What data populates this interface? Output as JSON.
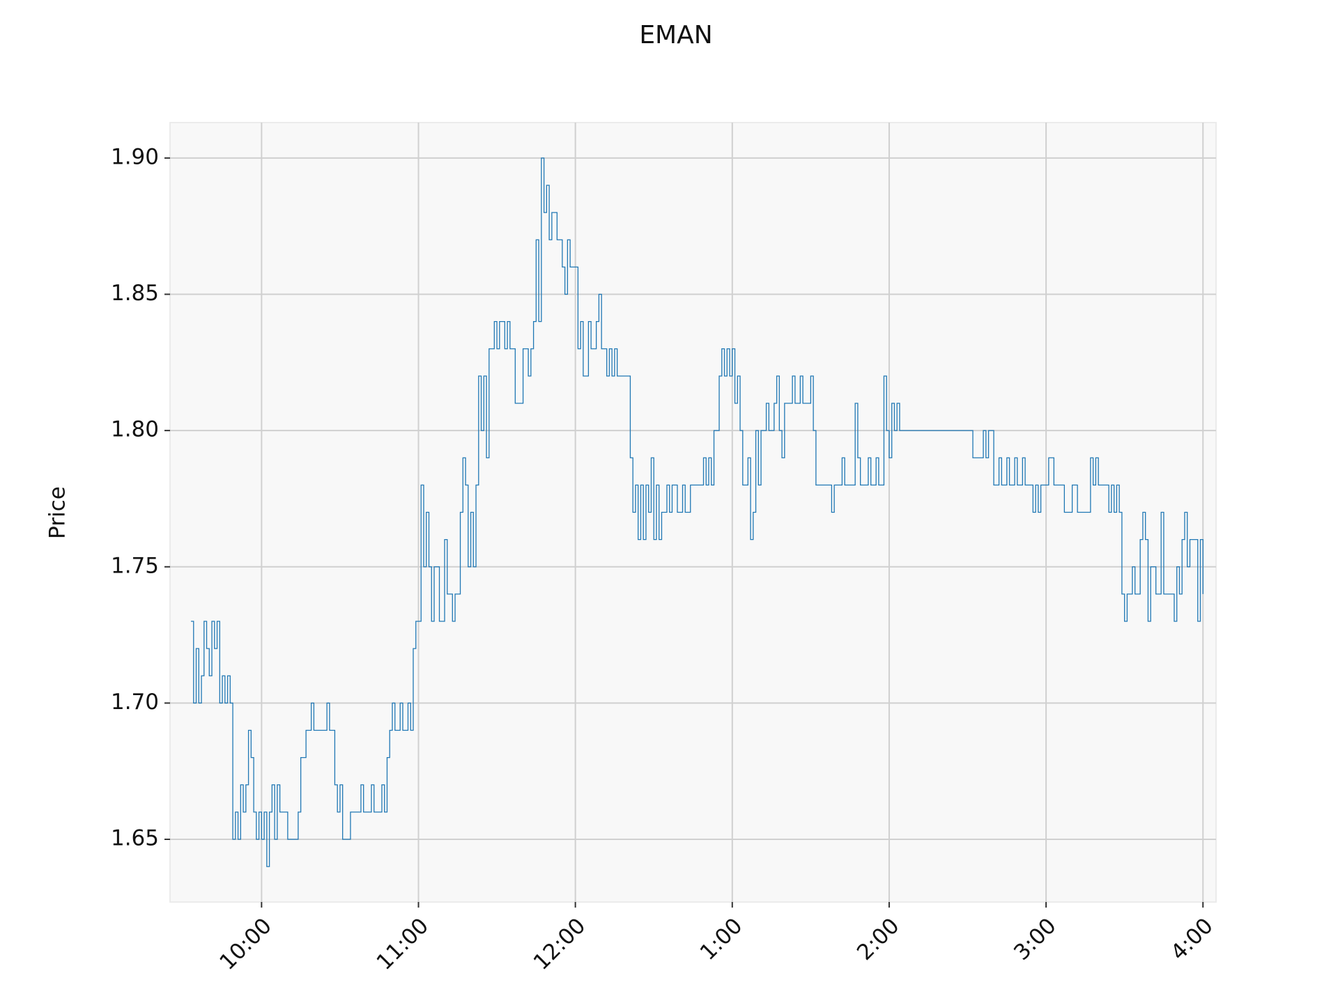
{
  "chart_data": {
    "type": "line",
    "drawstyle": "steps-post",
    "title": "EMAN",
    "ylabel": "Price",
    "color": "#1f77b4",
    "grid": true,
    "background": "#f8f8f8",
    "xlim": [
      "09:25",
      "16:05"
    ],
    "ylim": [
      1.627,
      1.913
    ],
    "xticks": [
      "10:00",
      "11:00",
      "12:00",
      {
        "value": "13:00",
        "label": "1:00"
      },
      {
        "value": "14:00",
        "label": "2:00"
      },
      {
        "value": "15:00",
        "label": "3:00"
      },
      {
        "value": "16:00",
        "label": "4:00"
      }
    ],
    "yticks": [
      1.65,
      {
        "value": 1.7,
        "label": "1.70"
      },
      1.75,
      {
        "value": 1.8,
        "label": "1.80"
      },
      1.85,
      {
        "value": 1.9,
        "label": "1.90"
      }
    ],
    "x": [
      "09:33",
      "09:34",
      "09:35",
      "09:36",
      "09:37",
      "09:38",
      "09:39",
      "09:40",
      "09:41",
      "09:42",
      "09:43",
      "09:44",
      "09:45",
      "09:46",
      "09:47",
      "09:48",
      "09:49",
      "09:50",
      "09:51",
      "09:52",
      "09:53",
      "09:54",
      "09:55",
      "09:56",
      "09:57",
      "09:58",
      "09:59",
      "10:00",
      "10:01",
      "10:02",
      "10:03",
      "10:04",
      "10:05",
      "10:06",
      "10:07",
      "10:10",
      "10:14",
      "10:15",
      "10:17",
      "10:19",
      "10:20",
      "10:25",
      "10:26",
      "10:28",
      "10:29",
      "10:30",
      "10:31",
      "10:34",
      "10:38",
      "10:39",
      "10:42",
      "10:43",
      "10:46",
      "10:47",
      "10:48",
      "10:49",
      "10:50",
      "10:51",
      "10:53",
      "10:54",
      "10:56",
      "10:57",
      "10:58",
      "10:59",
      "11:01",
      "11:02",
      "11:03",
      "11:04",
      "11:05",
      "11:06",
      "11:08",
      "11:10",
      "11:11",
      "11:13",
      "11:14",
      "11:16",
      "11:17",
      "11:18",
      "11:19",
      "11:20",
      "11:21",
      "11:22",
      "11:23",
      "11:24",
      "11:25",
      "11:26",
      "11:27",
      "11:29",
      "11:30",
      "11:31",
      "11:33",
      "11:34",
      "11:35",
      "11:37",
      "11:40",
      "11:42",
      "11:43",
      "11:44",
      "11:45",
      "11:46",
      "11:47",
      "11:48",
      "11:49",
      "11:50",
      "11:51",
      "11:53",
      "11:55",
      "11:56",
      "11:57",
      "11:58",
      "12:01",
      "12:02",
      "12:03",
      "12:05",
      "12:06",
      "12:08",
      "12:09",
      "12:10",
      "12:12",
      "12:13",
      "12:14",
      "12:15",
      "12:16",
      "12:21",
      "12:22",
      "12:23",
      "12:24",
      "12:25",
      "12:26",
      "12:27",
      "12:28",
      "12:29",
      "12:30",
      "12:31",
      "12:32",
      "12:33",
      "12:35",
      "12:36",
      "12:37",
      "12:39",
      "12:41",
      "12:42",
      "12:44",
      "12:49",
      "12:50",
      "12:51",
      "12:52",
      "12:53",
      "12:55",
      "12:56",
      "12:57",
      "12:58",
      "12:59",
      "13:00",
      "13:01",
      "13:02",
      "13:03",
      "13:04",
      "13:06",
      "13:07",
      "13:08",
      "13:09",
      "13:10",
      "13:11",
      "13:13",
      "13:14",
      "13:16",
      "13:17",
      "13:18",
      "13:19",
      "13:20",
      "13:23",
      "13:24",
      "13:26",
      "13:27",
      "13:30",
      "13:31",
      "13:32",
      "13:38",
      "13:39",
      "13:42",
      "13:43",
      "13:47",
      "13:48",
      "13:49",
      "13:52",
      "13:53",
      "13:55",
      "13:56",
      "13:58",
      "13:59",
      "14:00",
      "14:01",
      "14:02",
      "14:03",
      "14:04",
      "14:32",
      "14:36",
      "14:37",
      "14:38",
      "14:40",
      "14:42",
      "14:43",
      "14:45",
      "14:46",
      "14:48",
      "14:49",
      "14:51",
      "14:52",
      "14:55",
      "14:56",
      "14:57",
      "14:58",
      "15:01",
      "15:03",
      "15:07",
      "15:10",
      "15:12",
      "15:17",
      "15:18",
      "15:19",
      "15:20",
      "15:24",
      "15:25",
      "15:26",
      "15:27",
      "15:28",
      "15:29",
      "15:30",
      "15:31",
      "15:33",
      "15:34",
      "15:36",
      "15:37",
      "15:38",
      "15:39",
      "15:40",
      "15:42",
      "15:44",
      "15:45",
      "15:49",
      "15:50",
      "15:51",
      "15:52",
      "15:53",
      "15:54",
      "15:55",
      "15:57",
      "15:58",
      "15:59",
      "16:00"
    ],
    "values": [
      1.73,
      1.7,
      1.72,
      1.7,
      1.71,
      1.73,
      1.72,
      1.71,
      1.73,
      1.72,
      1.73,
      1.7,
      1.71,
      1.7,
      1.71,
      1.7,
      1.65,
      1.66,
      1.65,
      1.67,
      1.66,
      1.67,
      1.69,
      1.68,
      1.66,
      1.65,
      1.66,
      1.65,
      1.66,
      1.64,
      1.66,
      1.67,
      1.65,
      1.67,
      1.66,
      1.65,
      1.66,
      1.68,
      1.69,
      1.7,
      1.69,
      1.7,
      1.69,
      1.67,
      1.66,
      1.67,
      1.65,
      1.66,
      1.67,
      1.66,
      1.67,
      1.66,
      1.67,
      1.66,
      1.68,
      1.69,
      1.7,
      1.69,
      1.7,
      1.69,
      1.7,
      1.69,
      1.72,
      1.73,
      1.78,
      1.75,
      1.77,
      1.75,
      1.73,
      1.75,
      1.73,
      1.76,
      1.74,
      1.73,
      1.74,
      1.77,
      1.79,
      1.78,
      1.75,
      1.77,
      1.75,
      1.78,
      1.82,
      1.8,
      1.82,
      1.79,
      1.83,
      1.84,
      1.83,
      1.84,
      1.83,
      1.84,
      1.83,
      1.81,
      1.83,
      1.82,
      1.83,
      1.84,
      1.87,
      1.84,
      1.9,
      1.88,
      1.89,
      1.87,
      1.88,
      1.87,
      1.86,
      1.85,
      1.87,
      1.86,
      1.83,
      1.84,
      1.82,
      1.84,
      1.83,
      1.84,
      1.85,
      1.83,
      1.82,
      1.83,
      1.82,
      1.83,
      1.82,
      1.79,
      1.77,
      1.78,
      1.76,
      1.78,
      1.76,
      1.78,
      1.77,
      1.79,
      1.76,
      1.78,
      1.76,
      1.77,
      1.78,
      1.77,
      1.78,
      1.77,
      1.78,
      1.77,
      1.78,
      1.79,
      1.78,
      1.79,
      1.78,
      1.8,
      1.82,
      1.83,
      1.82,
      1.83,
      1.82,
      1.83,
      1.81,
      1.82,
      1.8,
      1.78,
      1.79,
      1.76,
      1.77,
      1.8,
      1.78,
      1.8,
      1.81,
      1.8,
      1.81,
      1.82,
      1.8,
      1.79,
      1.81,
      1.82,
      1.81,
      1.82,
      1.81,
      1.82,
      1.8,
      1.78,
      1.77,
      1.78,
      1.79,
      1.78,
      1.81,
      1.79,
      1.78,
      1.79,
      1.78,
      1.79,
      1.78,
      1.82,
      1.8,
      1.79,
      1.81,
      1.8,
      1.81,
      1.8,
      1.79,
      1.8,
      1.79,
      1.8,
      1.78,
      1.79,
      1.78,
      1.79,
      1.78,
      1.79,
      1.78,
      1.79,
      1.78,
      1.77,
      1.78,
      1.77,
      1.78,
      1.79,
      1.78,
      1.77,
      1.78,
      1.77,
      1.79,
      1.78,
      1.79,
      1.78,
      1.77,
      1.78,
      1.77,
      1.78,
      1.77,
      1.74,
      1.73,
      1.74,
      1.75,
      1.74,
      1.76,
      1.77,
      1.76,
      1.73,
      1.75,
      1.74,
      1.77,
      1.74,
      1.73,
      1.75,
      1.74,
      1.76,
      1.77,
      1.75,
      1.76,
      1.76,
      1.73,
      1.76,
      1.74
    ]
  }
}
